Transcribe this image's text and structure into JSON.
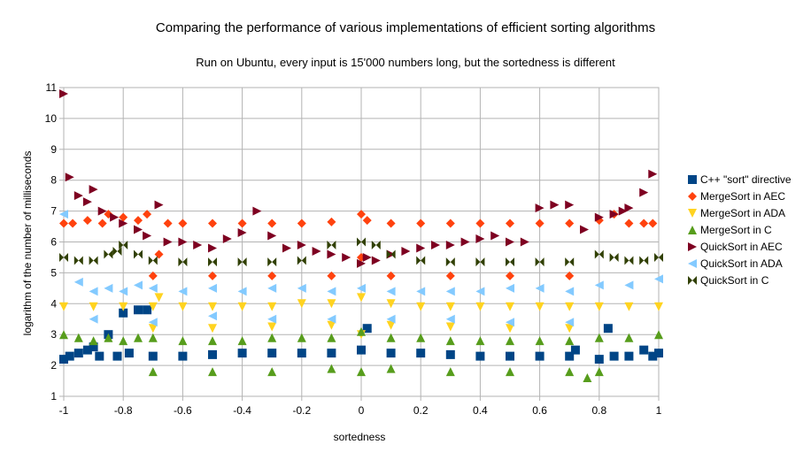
{
  "chart_data": {
    "type": "scatter",
    "title": "Comparing the performance of various implementations of efficient sorting algorithms",
    "subtitle": "Run on Ubuntu, every input is 15'000 numbers long, but the sortedness is different",
    "xlabel": "sortedness",
    "ylabel": "logarithm of the number of milliseconds",
    "xlim": [
      -1,
      1
    ],
    "ylim": [
      1,
      11
    ],
    "x_ticks": [
      "-1",
      "-0.8",
      "-0.6",
      "-0.4",
      "-0.2",
      "0",
      "0.2",
      "0.4",
      "0.6",
      "0.8",
      "1"
    ],
    "y_ticks": [
      "1",
      "2",
      "3",
      "4",
      "5",
      "6",
      "7",
      "8",
      "9",
      "10",
      "11"
    ],
    "grid": true,
    "legend_position": "right",
    "series": [
      {
        "name": "C++ \"sort\" directive",
        "color": "#004586",
        "marker": "square",
        "points": [
          [
            -1,
            2.2
          ],
          [
            -0.98,
            2.3
          ],
          [
            -0.95,
            2.4
          ],
          [
            -0.92,
            2.5
          ],
          [
            -0.9,
            2.6
          ],
          [
            -0.88,
            2.3
          ],
          [
            -0.85,
            3.0
          ],
          [
            -0.82,
            2.3
          ],
          [
            -0.8,
            3.7
          ],
          [
            -0.78,
            2.4
          ],
          [
            -0.75,
            3.8
          ],
          [
            -0.72,
            3.8
          ],
          [
            -0.7,
            2.3
          ],
          [
            -0.6,
            2.3
          ],
          [
            -0.5,
            2.35
          ],
          [
            -0.4,
            2.4
          ],
          [
            -0.3,
            2.4
          ],
          [
            -0.2,
            2.4
          ],
          [
            -0.1,
            2.4
          ],
          [
            0,
            2.5
          ],
          [
            0.02,
            3.2
          ],
          [
            0.1,
            2.4
          ],
          [
            0.2,
            2.4
          ],
          [
            0.3,
            2.35
          ],
          [
            0.4,
            2.3
          ],
          [
            0.5,
            2.3
          ],
          [
            0.6,
            2.3
          ],
          [
            0.7,
            2.3
          ],
          [
            0.72,
            2.5
          ],
          [
            0.8,
            2.2
          ],
          [
            0.83,
            3.2
          ],
          [
            0.85,
            2.3
          ],
          [
            0.9,
            2.3
          ],
          [
            0.95,
            2.5
          ],
          [
            0.98,
            2.3
          ],
          [
            1,
            2.4
          ]
        ]
      },
      {
        "name": "MergeSort in AEC",
        "color": "#ff420e",
        "marker": "diamond",
        "points": [
          [
            -1,
            6.6
          ],
          [
            -0.97,
            6.6
          ],
          [
            -0.92,
            6.7
          ],
          [
            -0.87,
            6.6
          ],
          [
            -0.85,
            6.9
          ],
          [
            -0.8,
            6.8
          ],
          [
            -0.75,
            6.7
          ],
          [
            -0.72,
            6.9
          ],
          [
            -0.68,
            5.6
          ],
          [
            -0.65,
            6.6
          ],
          [
            -0.6,
            6.6
          ],
          [
            -0.5,
            6.6
          ],
          [
            -0.4,
            6.6
          ],
          [
            -0.3,
            6.6
          ],
          [
            -0.2,
            6.6
          ],
          [
            -0.1,
            6.65
          ],
          [
            0,
            6.9
          ],
          [
            0.02,
            6.7
          ],
          [
            0.1,
            6.6
          ],
          [
            0.2,
            6.6
          ],
          [
            0.3,
            6.6
          ],
          [
            0.4,
            6.6
          ],
          [
            0.5,
            6.6
          ],
          [
            0.6,
            6.6
          ],
          [
            0.7,
            6.6
          ],
          [
            0.8,
            6.7
          ],
          [
            0.85,
            6.9
          ],
          [
            0.9,
            6.6
          ],
          [
            0.95,
            6.6
          ],
          [
            0.98,
            6.6
          ],
          [
            -0.7,
            4.9
          ],
          [
            -0.5,
            4.9
          ],
          [
            -0.3,
            4.9
          ],
          [
            -0.1,
            4.9
          ],
          [
            0,
            5.5
          ],
          [
            0.1,
            4.9
          ],
          [
            0.3,
            4.9
          ],
          [
            0.5,
            4.9
          ],
          [
            0.7,
            4.9
          ]
        ]
      },
      {
        "name": "MergeSort in ADA",
        "color": "#ffd320",
        "marker": "triangle-down",
        "points": [
          [
            -1,
            3.9
          ],
          [
            -0.9,
            3.9
          ],
          [
            -0.8,
            3.9
          ],
          [
            -0.7,
            3.9
          ],
          [
            -0.68,
            4.2
          ],
          [
            -0.6,
            3.9
          ],
          [
            -0.5,
            3.9
          ],
          [
            -0.4,
            3.9
          ],
          [
            -0.3,
            3.9
          ],
          [
            -0.2,
            4.0
          ],
          [
            -0.1,
            4.0
          ],
          [
            0,
            4.2
          ],
          [
            0.1,
            4.0
          ],
          [
            0.2,
            3.9
          ],
          [
            0.3,
            3.9
          ],
          [
            0.4,
            3.9
          ],
          [
            0.5,
            3.9
          ],
          [
            0.6,
            3.9
          ],
          [
            0.7,
            3.9
          ],
          [
            0.8,
            3.9
          ],
          [
            0.9,
            3.9
          ],
          [
            1,
            3.9
          ],
          [
            -0.7,
            3.2
          ],
          [
            -0.5,
            3.2
          ],
          [
            -0.3,
            3.25
          ],
          [
            -0.1,
            3.3
          ],
          [
            0,
            3.0
          ],
          [
            0.1,
            3.3
          ],
          [
            0.3,
            3.25
          ],
          [
            0.5,
            3.2
          ],
          [
            0.7,
            3.2
          ]
        ]
      },
      {
        "name": "MergeSort in C",
        "color": "#579d1c",
        "marker": "triangle-up",
        "points": [
          [
            -1,
            3.0
          ],
          [
            -0.95,
            2.9
          ],
          [
            -0.9,
            2.8
          ],
          [
            -0.85,
            2.9
          ],
          [
            -0.8,
            2.8
          ],
          [
            -0.75,
            2.9
          ],
          [
            -0.7,
            2.9
          ],
          [
            -0.6,
            2.8
          ],
          [
            -0.5,
            2.8
          ],
          [
            -0.4,
            2.8
          ],
          [
            -0.3,
            2.9
          ],
          [
            -0.2,
            2.9
          ],
          [
            -0.1,
            2.9
          ],
          [
            0,
            3.1
          ],
          [
            0.1,
            2.9
          ],
          [
            0.2,
            2.9
          ],
          [
            0.3,
            2.8
          ],
          [
            0.4,
            2.8
          ],
          [
            0.5,
            2.8
          ],
          [
            0.6,
            2.8
          ],
          [
            0.7,
            2.8
          ],
          [
            0.8,
            2.9
          ],
          [
            0.9,
            2.9
          ],
          [
            1,
            3.0
          ],
          [
            -0.7,
            1.8
          ],
          [
            -0.5,
            1.8
          ],
          [
            -0.3,
            1.8
          ],
          [
            -0.1,
            1.9
          ],
          [
            0,
            1.8
          ],
          [
            0.1,
            1.9
          ],
          [
            0.3,
            1.8
          ],
          [
            0.5,
            1.8
          ],
          [
            0.7,
            1.8
          ],
          [
            0.76,
            1.6
          ],
          [
            0.8,
            1.8
          ]
        ]
      },
      {
        "name": "QuickSort in AEC",
        "color": "#7e0021",
        "marker": "triangle-right",
        "points": [
          [
            -1,
            10.8
          ],
          [
            -0.98,
            8.1
          ],
          [
            -0.95,
            7.5
          ],
          [
            -0.92,
            7.3
          ],
          [
            -0.9,
            7.7
          ],
          [
            -0.87,
            7.0
          ],
          [
            -0.83,
            6.8
          ],
          [
            -0.8,
            6.6
          ],
          [
            -0.75,
            6.4
          ],
          [
            -0.72,
            6.2
          ],
          [
            -0.68,
            7.2
          ],
          [
            -0.65,
            6.0
          ],
          [
            -0.6,
            6.0
          ],
          [
            -0.55,
            5.9
          ],
          [
            -0.5,
            5.8
          ],
          [
            -0.45,
            6.1
          ],
          [
            -0.4,
            6.3
          ],
          [
            -0.35,
            7.0
          ],
          [
            -0.3,
            6.2
          ],
          [
            -0.25,
            5.8
          ],
          [
            -0.2,
            5.9
          ],
          [
            -0.15,
            5.7
          ],
          [
            -0.1,
            5.6
          ],
          [
            -0.05,
            5.5
          ],
          [
            0,
            5.3
          ],
          [
            0.02,
            5.5
          ],
          [
            0.05,
            5.4
          ],
          [
            0.1,
            5.6
          ],
          [
            0.15,
            5.7
          ],
          [
            0.2,
            5.8
          ],
          [
            0.25,
            5.9
          ],
          [
            0.3,
            5.9
          ],
          [
            0.35,
            6.0
          ],
          [
            0.4,
            6.1
          ],
          [
            0.45,
            6.2
          ],
          [
            0.5,
            6.0
          ],
          [
            0.55,
            6.0
          ],
          [
            0.6,
            7.1
          ],
          [
            0.65,
            7.2
          ],
          [
            0.7,
            7.2
          ],
          [
            0.75,
            6.4
          ],
          [
            0.8,
            6.8
          ],
          [
            0.85,
            6.9
          ],
          [
            0.88,
            7.0
          ],
          [
            0.9,
            7.1
          ],
          [
            0.95,
            7.6
          ],
          [
            0.98,
            8.2
          ]
        ]
      },
      {
        "name": "QuickSort in ADA",
        "color": "#83caff",
        "marker": "triangle-left",
        "points": [
          [
            -1,
            6.9
          ],
          [
            -0.95,
            4.7
          ],
          [
            -0.9,
            4.4
          ],
          [
            -0.85,
            4.5
          ],
          [
            -0.8,
            4.4
          ],
          [
            -0.75,
            4.6
          ],
          [
            -0.7,
            4.5
          ],
          [
            -0.6,
            4.4
          ],
          [
            -0.5,
            4.5
          ],
          [
            -0.4,
            4.4
          ],
          [
            -0.3,
            4.5
          ],
          [
            -0.2,
            4.5
          ],
          [
            -0.1,
            4.4
          ],
          [
            0,
            4.5
          ],
          [
            0.1,
            4.4
          ],
          [
            0.2,
            4.4
          ],
          [
            0.3,
            4.4
          ],
          [
            0.4,
            4.4
          ],
          [
            0.5,
            4.5
          ],
          [
            0.6,
            4.5
          ],
          [
            0.7,
            4.4
          ],
          [
            0.8,
            4.6
          ],
          [
            0.9,
            4.6
          ],
          [
            1,
            4.8
          ],
          [
            -0.9,
            3.5
          ],
          [
            -0.7,
            3.4
          ],
          [
            -0.5,
            3.6
          ],
          [
            -0.3,
            3.5
          ],
          [
            -0.1,
            3.5
          ],
          [
            0.1,
            3.5
          ],
          [
            0.3,
            3.5
          ],
          [
            0.5,
            3.4
          ],
          [
            0.7,
            3.4
          ]
        ]
      },
      {
        "name": "QuickSort in C",
        "color": "#314004",
        "marker": "bowtie",
        "points": [
          [
            -1,
            5.5
          ],
          [
            -0.95,
            5.4
          ],
          [
            -0.9,
            5.4
          ],
          [
            -0.85,
            5.6
          ],
          [
            -0.82,
            5.7
          ],
          [
            -0.8,
            5.9
          ],
          [
            -0.75,
            5.6
          ],
          [
            -0.7,
            5.4
          ],
          [
            -0.6,
            5.35
          ],
          [
            -0.5,
            5.35
          ],
          [
            -0.4,
            5.35
          ],
          [
            -0.3,
            5.35
          ],
          [
            -0.2,
            5.4
          ],
          [
            -0.1,
            5.9
          ],
          [
            0,
            6.0
          ],
          [
            0.05,
            5.9
          ],
          [
            0.1,
            5.6
          ],
          [
            0.2,
            5.4
          ],
          [
            0.3,
            5.35
          ],
          [
            0.4,
            5.35
          ],
          [
            0.5,
            5.35
          ],
          [
            0.6,
            5.35
          ],
          [
            0.7,
            5.35
          ],
          [
            0.8,
            5.6
          ],
          [
            0.85,
            5.5
          ],
          [
            0.9,
            5.4
          ],
          [
            0.95,
            5.4
          ],
          [
            1,
            5.5
          ]
        ]
      }
    ]
  }
}
